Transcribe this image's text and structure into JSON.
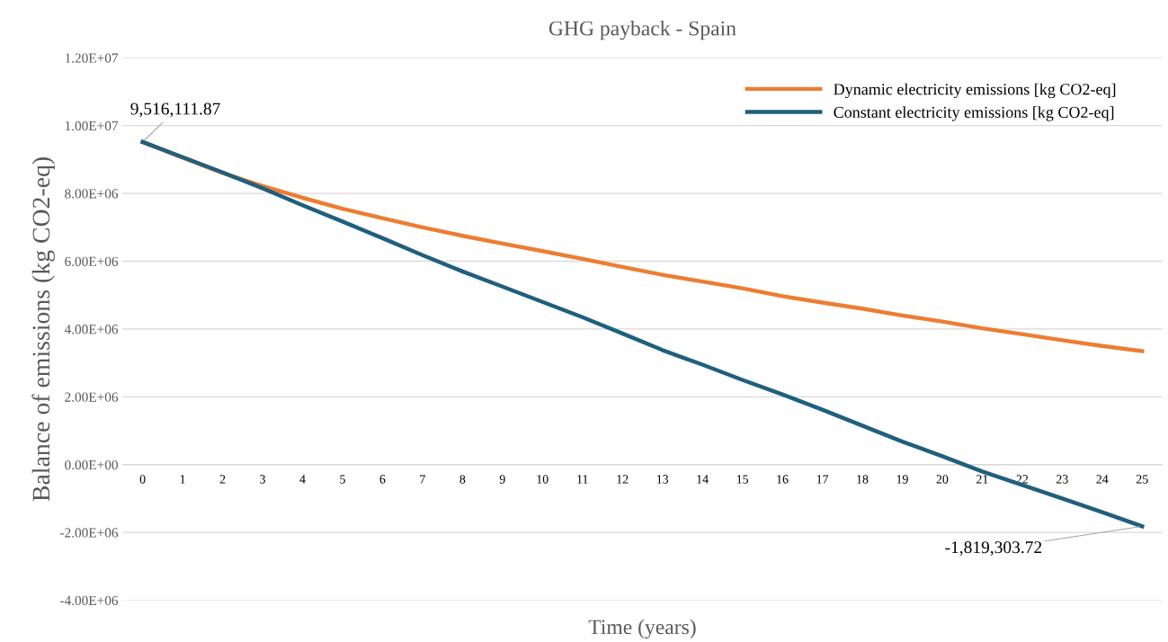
{
  "chart_data": {
    "type": "line",
    "title": "GHG payback - Spain",
    "xlabel": "Time (years)",
    "ylabel": "Balance of emissions (kg CO2-eq)",
    "categories": [
      "0",
      "1",
      "2",
      "3",
      "4",
      "5",
      "6",
      "7",
      "8",
      "9",
      "10",
      "11",
      "12",
      "13",
      "14",
      "15",
      "16",
      "17",
      "18",
      "19",
      "20",
      "21",
      "22",
      "23",
      "24",
      "25"
    ],
    "series": [
      {
        "name": "Dynamic electricity emissions [kg CO2-eq]",
        "color": "#ed7d31",
        "values": [
          9516111.87,
          9050000,
          8600000,
          8220000,
          7870000,
          7550000,
          7270000,
          7000000,
          6750000,
          6520000,
          6300000,
          6070000,
          5830000,
          5600000,
          5400000,
          5200000,
          4970000,
          4780000,
          4600000,
          4400000,
          4220000,
          4020000,
          3850000,
          3670000,
          3500000,
          3350000
        ]
      },
      {
        "name": "Constant electricity emissions [kg CO2-eq]",
        "color": "#1f5f7f",
        "values": [
          9516111.87,
          9070000,
          8620000,
          8150000,
          7650000,
          7170000,
          6680000,
          6180000,
          5700000,
          5250000,
          4800000,
          4350000,
          3870000,
          3380000,
          2950000,
          2500000,
          2070000,
          1620000,
          1150000,
          680000,
          250000,
          -200000,
          -600000,
          -1000000,
          -1400000,
          -1819303.72
        ]
      }
    ],
    "ylim": [
      -4000000,
      12000000
    ],
    "yticks": [
      {
        "value": -4000000,
        "label": "-4.00E+06"
      },
      {
        "value": -2000000,
        "label": "-2.00E+06"
      },
      {
        "value": 0,
        "label": "0.00E+00"
      },
      {
        "value": 2000000,
        "label": "2.00E+06"
      },
      {
        "value": 4000000,
        "label": "4.00E+06"
      },
      {
        "value": 6000000,
        "label": "6.00E+06"
      },
      {
        "value": 8000000,
        "label": "8.00E+06"
      },
      {
        "value": 10000000,
        "label": "1.00E+07"
      },
      {
        "value": 12000000,
        "label": "1.20E+07"
      }
    ],
    "annotations": [
      {
        "text": "9,516,111.87",
        "x": "0",
        "y": 9516111.87
      },
      {
        "text": "-1,819,303.72",
        "x": "25",
        "y": -1819303.72
      }
    ],
    "grid": "y",
    "legend": "top right",
    "marker": "none",
    "line_style": "solid"
  }
}
